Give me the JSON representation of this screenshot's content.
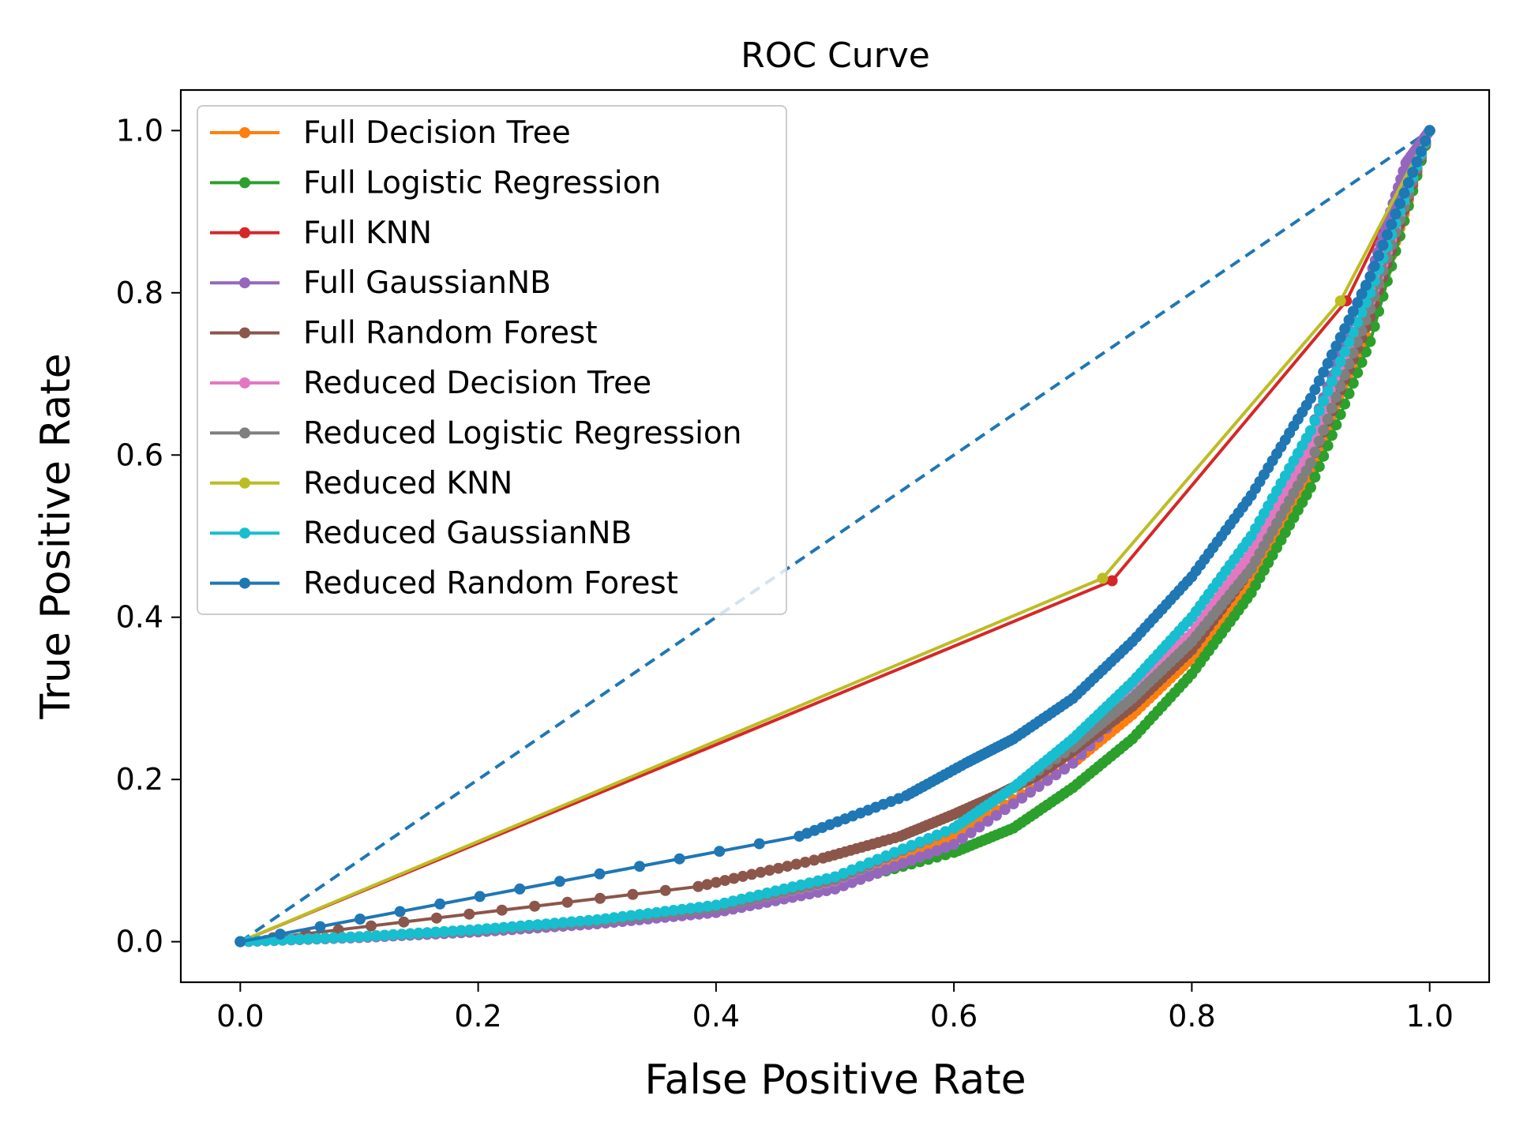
{
  "chart_data": {
    "type": "line",
    "title": "ROC Curve",
    "xlabel": "False Positive Rate",
    "ylabel": "True Positive Rate",
    "xlim": [
      -0.05,
      1.05
    ],
    "ylim": [
      -0.05,
      1.05
    ],
    "xticks": [
      "0.0",
      "0.2",
      "0.4",
      "0.6",
      "0.8",
      "1.0"
    ],
    "yticks": [
      "0.0",
      "0.2",
      "0.4",
      "0.6",
      "0.8",
      "1.0"
    ],
    "grid": false,
    "legend_position": "upper-left",
    "reference_line": {
      "x": [
        0,
        1
      ],
      "y": [
        0,
        1
      ],
      "color": "#1f77b4",
      "style": "dashed"
    },
    "series": [
      {
        "name": "Full Decision Tree",
        "color": "#ff7f0e",
        "x": [
          0,
          0.1,
          0.2,
          0.3,
          0.4,
          0.5,
          0.6,
          0.7,
          0.75,
          0.8,
          0.85,
          0.9,
          0.95,
          1.0
        ],
        "y": [
          0,
          0.006,
          0.014,
          0.024,
          0.04,
          0.07,
          0.13,
          0.22,
          0.28,
          0.35,
          0.44,
          0.57,
          0.76,
          1.0
        ]
      },
      {
        "name": "Full Logistic Regression",
        "color": "#2ca02c",
        "x": [
          0,
          0.1,
          0.2,
          0.3,
          0.4,
          0.5,
          0.6,
          0.65,
          0.7,
          0.75,
          0.8,
          0.85,
          0.9,
          0.95,
          1.0
        ],
        "y": [
          0,
          0.006,
          0.014,
          0.024,
          0.04,
          0.07,
          0.11,
          0.14,
          0.19,
          0.25,
          0.33,
          0.43,
          0.56,
          0.74,
          1.0
        ]
      },
      {
        "name": "Full KNN",
        "color": "#d62728",
        "x": [
          0,
          0.733,
          0.93,
          1.0
        ],
        "y": [
          0,
          0.445,
          0.79,
          1.0
        ]
      },
      {
        "name": "Full GaussianNB",
        "color": "#9467bd",
        "x": [
          0,
          0.1,
          0.2,
          0.3,
          0.4,
          0.5,
          0.6,
          0.7,
          0.8,
          0.85,
          0.9,
          0.95,
          0.98,
          1.0
        ],
        "y": [
          0,
          0.005,
          0.012,
          0.022,
          0.036,
          0.065,
          0.12,
          0.22,
          0.37,
          0.48,
          0.63,
          0.82,
          0.96,
          1.0
        ]
      },
      {
        "name": "Full Random Forest",
        "color": "#8c564b",
        "x": [
          0,
          0.385,
          0.49,
          0.555,
          0.6,
          0.64,
          0.67,
          0.7,
          0.75,
          0.8,
          0.85,
          0.9,
          0.95,
          1.0
        ],
        "y": [
          0,
          0.068,
          0.103,
          0.13,
          0.157,
          0.183,
          0.205,
          0.235,
          0.29,
          0.36,
          0.46,
          0.59,
          0.77,
          1.0
        ]
      },
      {
        "name": "Reduced Decision Tree",
        "color": "#e377c2",
        "x": [
          0,
          0.1,
          0.2,
          0.3,
          0.4,
          0.5,
          0.6,
          0.7,
          0.75,
          0.8,
          0.85,
          0.9,
          0.95,
          1.0
        ],
        "y": [
          0,
          0.006,
          0.014,
          0.025,
          0.042,
          0.075,
          0.14,
          0.24,
          0.31,
          0.38,
          0.48,
          0.61,
          0.79,
          1.0
        ]
      },
      {
        "name": "Reduced Logistic Regression",
        "color": "#7f7f7f",
        "x": [
          0,
          0.1,
          0.2,
          0.3,
          0.4,
          0.5,
          0.6,
          0.7,
          0.75,
          0.8,
          0.85,
          0.9,
          0.95,
          1.0
        ],
        "y": [
          0,
          0.006,
          0.014,
          0.025,
          0.042,
          0.076,
          0.14,
          0.24,
          0.3,
          0.37,
          0.46,
          0.59,
          0.78,
          1.0
        ]
      },
      {
        "name": "Reduced KNN",
        "color": "#bcbd22",
        "x": [
          0,
          0.725,
          0.925,
          1.0
        ],
        "y": [
          0,
          0.448,
          0.79,
          1.0
        ]
      },
      {
        "name": "Reduced GaussianNB",
        "color": "#17becf",
        "x": [
          0,
          0.1,
          0.2,
          0.3,
          0.4,
          0.5,
          0.6,
          0.65,
          0.7,
          0.75,
          0.8,
          0.85,
          0.9,
          0.95,
          1.0
        ],
        "y": [
          0,
          0.006,
          0.015,
          0.027,
          0.045,
          0.08,
          0.14,
          0.19,
          0.25,
          0.32,
          0.4,
          0.5,
          0.63,
          0.8,
          1.0
        ]
      },
      {
        "name": "Reduced Random Forest",
        "color": "#1f77b4",
        "x": [
          0,
          0.47,
          0.56,
          0.61,
          0.65,
          0.7,
          0.75,
          0.8,
          0.85,
          0.9,
          0.95,
          1.0
        ],
        "y": [
          0,
          0.13,
          0.18,
          0.22,
          0.25,
          0.3,
          0.37,
          0.45,
          0.55,
          0.67,
          0.82,
          1.0
        ]
      }
    ]
  }
}
